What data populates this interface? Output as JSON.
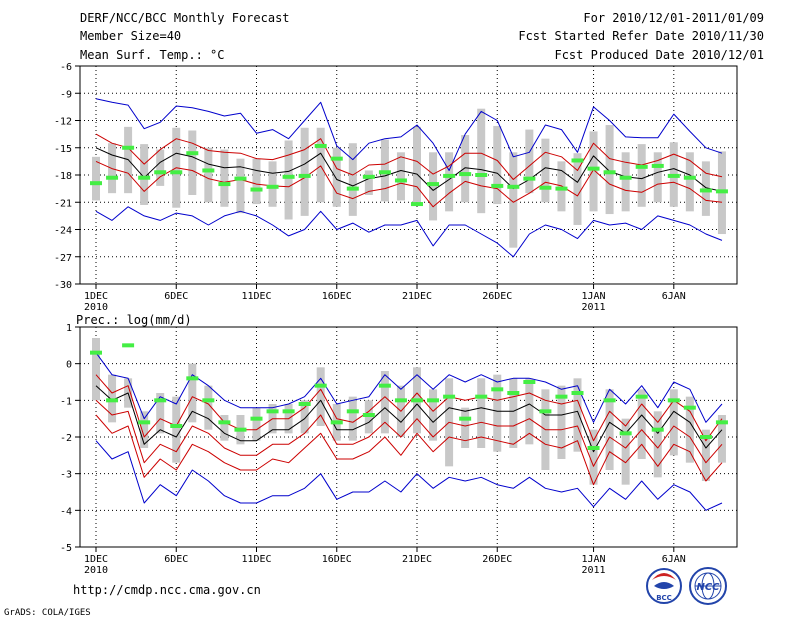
{
  "header": {
    "title": "DERF/NCC/BCC Monthly Forecast",
    "member_size": "Member Size=40",
    "variable": "Mean Surf. Temp.: °C",
    "period": "For 2010/12/01-2011/01/09",
    "started": "Fcst Started Refer Date 2010/11/30",
    "produced": "Fcst Produced Date 2010/12/01"
  },
  "footer": {
    "url": "http://cmdp.ncc.cma.gov.cn",
    "grads": "GrADS: COLA/IGES",
    "logo_bcc": "BCC",
    "logo_ncc": "NCC"
  },
  "colors": {
    "envelope": "#0000cc",
    "spread": "#cc0000",
    "mean": "#000000",
    "box": "#c8c8c8",
    "obs": "#44ee44"
  },
  "chart_data": [
    {
      "type": "line",
      "title": "Mean Surf. Temp.: °C",
      "xlabel": "",
      "ylabel": "",
      "ylim": [
        -30,
        -6
      ],
      "yticks": [
        -6,
        -9,
        -12,
        -15,
        -18,
        -21,
        -24,
        -27,
        -30
      ],
      "x_days": [
        1,
        2,
        3,
        4,
        5,
        6,
        7,
        8,
        9,
        10,
        11,
        12,
        13,
        14,
        15,
        16,
        17,
        18,
        19,
        20,
        21,
        22,
        23,
        24,
        25,
        26,
        27,
        28,
        29,
        30,
        31,
        32,
        33,
        34,
        35,
        36,
        37,
        38,
        39,
        40
      ],
      "x_tick_labels": [
        {
          "day": 1,
          "label": "1DEC",
          "sub": "2010"
        },
        {
          "day": 6,
          "label": "6DEC",
          "sub": ""
        },
        {
          "day": 11,
          "label": "11DEC",
          "sub": ""
        },
        {
          "day": 16,
          "label": "16DEC",
          "sub": ""
        },
        {
          "day": 21,
          "label": "21DEC",
          "sub": ""
        },
        {
          "day": 26,
          "label": "26DEC",
          "sub": ""
        },
        {
          "day": 32,
          "label": "1JAN",
          "sub": "2011"
        },
        {
          "day": 37,
          "label": "6JAN",
          "sub": ""
        }
      ],
      "series": [
        {
          "name": "max",
          "role": "envelope",
          "values": [
            -9.6,
            -10.0,
            -10.3,
            -12.9,
            -12.2,
            -10.4,
            -10.6,
            -11.0,
            -11.5,
            -11.2,
            -13.4,
            -13.0,
            -14.0,
            -12.0,
            -10.0,
            -14.8,
            -16.3,
            -14.5,
            -14.0,
            -13.8,
            -12.5,
            -14.5,
            -17.5,
            -13.5,
            -11.0,
            -12.0,
            -16.0,
            -15.5,
            -12.5,
            -13.0,
            -15.5,
            -10.5,
            -12.0,
            -13.8,
            -13.9,
            -13.9,
            -11.3,
            -13.2,
            -15.0,
            -15.6
          ]
        },
        {
          "name": "upper",
          "role": "spread",
          "values": [
            -13.5,
            -14.5,
            -15.0,
            -16.8,
            -15.2,
            -14.0,
            -14.5,
            -15.3,
            -15.5,
            -15.6,
            -16.2,
            -16.3,
            -15.8,
            -15.2,
            -14.0,
            -17.3,
            -18.0,
            -16.9,
            -16.8,
            -16.0,
            -16.5,
            -17.9,
            -17.0,
            -15.6,
            -15.6,
            -16.4,
            -18.5,
            -17.0,
            -15.5,
            -16.0,
            -17.5,
            -14.5,
            -16.2,
            -16.6,
            -16.9,
            -16.4,
            -15.7,
            -16.4,
            -17.8,
            -18.2
          ]
        },
        {
          "name": "mean",
          "role": "mean",
          "values": [
            -15.0,
            -15.8,
            -16.3,
            -18.3,
            -16.6,
            -15.6,
            -16.0,
            -16.8,
            -17.2,
            -17.1,
            -17.5,
            -17.8,
            -17.6,
            -16.8,
            -15.6,
            -18.5,
            -19.2,
            -18.4,
            -18.1,
            -17.5,
            -17.9,
            -19.7,
            -18.5,
            -17.2,
            -17.4,
            -17.8,
            -19.5,
            -18.5,
            -17.2,
            -17.5,
            -18.8,
            -15.9,
            -17.6,
            -18.2,
            -18.4,
            -17.7,
            -17.3,
            -18.0,
            -19.4,
            -19.8
          ]
        },
        {
          "name": "lower",
          "role": "spread",
          "values": [
            -16.5,
            -17.3,
            -17.8,
            -19.8,
            -18.2,
            -17.2,
            -17.5,
            -18.4,
            -18.8,
            -18.5,
            -19.0,
            -19.2,
            -19.3,
            -18.3,
            -17.0,
            -20.0,
            -20.6,
            -19.8,
            -19.5,
            -18.9,
            -19.3,
            -21.5,
            -20.0,
            -18.7,
            -19.2,
            -19.5,
            -21.0,
            -20.0,
            -18.8,
            -19.2,
            -20.3,
            -17.4,
            -19.0,
            -19.7,
            -19.9,
            -19.0,
            -18.8,
            -19.5,
            -20.8,
            -21.0
          ]
        },
        {
          "name": "min",
          "role": "envelope",
          "values": [
            -22.0,
            -23.0,
            -21.5,
            -22.5,
            -23.0,
            -22.2,
            -22.5,
            -23.5,
            -22.5,
            -22.0,
            -22.5,
            -23.5,
            -24.7,
            -24.0,
            -22.0,
            -24.0,
            -23.3,
            -24.3,
            -23.5,
            -23.5,
            -23.0,
            -25.8,
            -23.5,
            -23.5,
            -24.5,
            -25.5,
            -27.0,
            -24.5,
            -23.5,
            -24.0,
            -25.0,
            -23.0,
            -23.5,
            -23.3,
            -24.0,
            -22.5,
            -23.0,
            -23.5,
            -24.5,
            -25.2
          ]
        }
      ],
      "boxes": {
        "high": [
          -16.0,
          -14.5,
          -12.7,
          -14.6,
          -15.2,
          -12.8,
          -13.1,
          -15.0,
          -15.2,
          -16.2,
          -16.2,
          -16.5,
          -14.2,
          -12.8,
          -12.8,
          -15.0,
          -14.5,
          -17.5,
          -14.1,
          -15.5,
          -12.7,
          -15.5,
          -15.5,
          -13.6,
          -10.7,
          -12.6,
          -15.5,
          -13.0,
          -14.0,
          -16.5,
          -15.6,
          -13.2,
          -12.5,
          -15.5,
          -14.6,
          -15.5,
          -14.4,
          -15.5,
          -16.5,
          -15.4
        ],
        "low": [
          -20.8,
          -20.0,
          -20.0,
          -21.3,
          -19.2,
          -21.6,
          -20.2,
          -21.0,
          -21.5,
          -22.2,
          -21.2,
          -21.5,
          -22.9,
          -22.5,
          -21.0,
          -21.5,
          -22.5,
          -20.2,
          -20.9,
          -20.8,
          -21.0,
          -23.0,
          -22.0,
          -21.0,
          -22.2,
          -21.2,
          -26.0,
          -20.0,
          -21.0,
          -22.0,
          -23.5,
          -22.0,
          -22.3,
          -22.0,
          -21.5,
          -21.0,
          -21.5,
          -22.0,
          -22.5,
          -24.5
        ]
      },
      "observed": [
        -18.9,
        -18.3,
        -15.0,
        -18.3,
        -17.7,
        -17.7,
        -15.6,
        -17.5,
        -19.0,
        -18.4,
        -19.6,
        -19.3,
        -18.2,
        -18.1,
        -14.8,
        -16.2,
        -19.5,
        -18.2,
        -17.7,
        -18.6,
        -21.2,
        -19.0,
        -18.1,
        -17.9,
        -18.0,
        -19.2,
        -19.3,
        -18.4,
        -19.4,
        -19.5,
        -16.4,
        -17.3,
        -17.7,
        -18.3,
        -17.1,
        -17.0,
        -18.1,
        -18.3,
        -19.7,
        -19.8
      ]
    },
    {
      "type": "line",
      "title": "Prec.: log(mm/d)",
      "xlabel": "",
      "ylabel": "",
      "ylim": [
        -5,
        1
      ],
      "yticks": [
        1,
        0,
        -1,
        -2,
        -3,
        -4,
        -5
      ],
      "x_days": [
        1,
        2,
        3,
        4,
        5,
        6,
        7,
        8,
        9,
        10,
        11,
        12,
        13,
        14,
        15,
        16,
        17,
        18,
        19,
        20,
        21,
        22,
        23,
        24,
        25,
        26,
        27,
        28,
        29,
        30,
        31,
        32,
        33,
        34,
        35,
        36,
        37,
        38,
        39,
        40
      ],
      "x_tick_labels": [
        {
          "day": 1,
          "label": "1DEC",
          "sub": "2010"
        },
        {
          "day": 6,
          "label": "6DEC",
          "sub": ""
        },
        {
          "day": 11,
          "label": "11DEC",
          "sub": ""
        },
        {
          "day": 16,
          "label": "16DEC",
          "sub": ""
        },
        {
          "day": 21,
          "label": "21DEC",
          "sub": ""
        },
        {
          "day": 26,
          "label": "26DEC",
          "sub": ""
        },
        {
          "day": 32,
          "label": "1JAN",
          "sub": "2011"
        },
        {
          "day": 37,
          "label": "6JAN",
          "sub": ""
        }
      ],
      "series": [
        {
          "name": "max",
          "role": "envelope",
          "values": [
            0.3,
            -0.3,
            -0.4,
            -1.5,
            -0.9,
            -1.1,
            -0.3,
            -0.6,
            -1.0,
            -1.2,
            -1.2,
            -1.2,
            -1.1,
            -0.9,
            -0.4,
            -1.1,
            -1.0,
            -0.9,
            -0.3,
            -0.7,
            -0.3,
            -0.7,
            -0.3,
            -0.5,
            -0.3,
            -0.5,
            -0.4,
            -0.4,
            -0.5,
            -0.7,
            -0.6,
            -1.6,
            -0.7,
            -1.1,
            -0.6,
            -1.2,
            -0.5,
            -0.7,
            -1.6,
            -1.1
          ]
        },
        {
          "name": "upper",
          "role": "spread",
          "values": [
            -0.3,
            -0.8,
            -0.6,
            -2.0,
            -1.5,
            -1.7,
            -0.9,
            -1.1,
            -1.6,
            -1.8,
            -1.8,
            -1.5,
            -1.5,
            -1.2,
            -0.7,
            -1.5,
            -1.6,
            -1.3,
            -0.9,
            -1.3,
            -0.8,
            -1.3,
            -0.9,
            -1.0,
            -0.9,
            -1.0,
            -0.9,
            -0.8,
            -1.0,
            -1.1,
            -1.0,
            -2.1,
            -1.3,
            -1.7,
            -1.1,
            -1.6,
            -1.0,
            -1.3,
            -2.1,
            -1.5
          ]
        },
        {
          "name": "mean",
          "role": "mean",
          "values": [
            -0.6,
            -1.0,
            -0.8,
            -2.2,
            -1.8,
            -2.0,
            -1.3,
            -1.5,
            -1.9,
            -2.1,
            -2.1,
            -1.8,
            -1.8,
            -1.5,
            -1.0,
            -1.8,
            -1.8,
            -1.6,
            -1.2,
            -1.6,
            -1.1,
            -1.6,
            -1.2,
            -1.3,
            -1.2,
            -1.3,
            -1.3,
            -1.1,
            -1.4,
            -1.4,
            -1.3,
            -2.4,
            -1.6,
            -1.9,
            -1.4,
            -1.9,
            -1.3,
            -1.6,
            -2.3,
            -1.8
          ]
        },
        {
          "name": "lower",
          "role": "spread",
          "values": [
            -1.0,
            -1.4,
            -1.3,
            -2.7,
            -2.2,
            -2.4,
            -1.7,
            -1.9,
            -2.3,
            -2.5,
            -2.5,
            -2.2,
            -2.2,
            -1.9,
            -1.4,
            -2.2,
            -2.2,
            -2.0,
            -1.6,
            -2.0,
            -1.5,
            -2.0,
            -1.6,
            -1.7,
            -1.6,
            -1.7,
            -1.7,
            -1.5,
            -1.8,
            -1.8,
            -1.7,
            -2.8,
            -2.0,
            -2.3,
            -1.8,
            -2.3,
            -1.7,
            -2.0,
            -2.7,
            -2.2
          ]
        },
        {
          "name": "lower2",
          "role": "spread",
          "values": [
            -1.4,
            -1.9,
            -1.7,
            -3.1,
            -2.6,
            -2.9,
            -2.2,
            -2.4,
            -2.7,
            -2.9,
            -2.9,
            -2.6,
            -2.7,
            -2.3,
            -1.9,
            -2.6,
            -2.6,
            -2.4,
            -2.0,
            -2.5,
            -1.9,
            -2.4,
            -2.0,
            -2.1,
            -2.0,
            -2.1,
            -2.2,
            -1.9,
            -2.2,
            -2.3,
            -2.1,
            -3.3,
            -2.4,
            -2.7,
            -2.2,
            -2.8,
            -2.2,
            -2.4,
            -3.2,
            -2.7
          ]
        },
        {
          "name": "min",
          "role": "envelope",
          "values": [
            -2.1,
            -2.6,
            -2.4,
            -3.8,
            -3.3,
            -3.6,
            -2.9,
            -3.2,
            -3.6,
            -3.8,
            -3.8,
            -3.6,
            -3.6,
            -3.4,
            -3.0,
            -3.7,
            -3.5,
            -3.5,
            -3.2,
            -3.5,
            -3.0,
            -3.4,
            -3.1,
            -3.2,
            -3.1,
            -3.3,
            -3.4,
            -3.1,
            -3.4,
            -3.5,
            -3.4,
            -3.9,
            -3.4,
            -3.7,
            -3.2,
            -3.7,
            -3.3,
            -3.5,
            -4.0,
            -3.8
          ]
        },
        {
          "name": "min2",
          "role": "envelope-blank",
          "values": []
        }
      ],
      "boxes": {
        "high": [
          0.7,
          -0.3,
          -0.4,
          -1.3,
          -0.8,
          -0.9,
          0.0,
          -0.6,
          -1.4,
          -1.4,
          -1.2,
          -1.1,
          -1.1,
          -1.0,
          -0.1,
          -1.1,
          -0.9,
          -1.0,
          -0.2,
          -0.6,
          -0.1,
          -0.7,
          -0.4,
          -1.2,
          -0.4,
          -0.3,
          -0.4,
          -0.4,
          -0.7,
          -0.6,
          -0.4,
          -1.8,
          -0.7,
          -1.5,
          -0.7,
          -1.3,
          -0.7,
          -0.9,
          -1.8,
          -1.4
        ],
        "low": [
          -1.0,
          -1.6,
          -1.2,
          -2.3,
          -1.9,
          -2.7,
          -1.6,
          -1.8,
          -2.1,
          -2.2,
          -2.1,
          -1.9,
          -1.9,
          -1.9,
          -1.7,
          -2.1,
          -2.1,
          -1.9,
          -1.9,
          -2.0,
          -1.9,
          -2.1,
          -2.8,
          -2.3,
          -2.3,
          -2.4,
          -2.3,
          -2.2,
          -2.9,
          -2.6,
          -2.4,
          -3.3,
          -2.9,
          -3.3,
          -2.6,
          -3.1,
          -2.5,
          -2.7,
          -3.2,
          -2.7
        ]
      },
      "observed": [
        0.3,
        -1.0,
        0.5,
        -1.6,
        -1.0,
        -1.7,
        -0.4,
        -1.0,
        -1.6,
        -1.8,
        -1.5,
        -1.3,
        -1.3,
        -1.1,
        -0.6,
        -1.6,
        -1.3,
        -1.4,
        -0.6,
        -1.0,
        -1.0,
        -1.0,
        -0.9,
        -1.5,
        -0.9,
        -0.7,
        -0.8,
        -0.5,
        -1.3,
        -0.9,
        -0.8,
        -2.3,
        -1.0,
        -1.9,
        -0.9,
        -1.8,
        -1.0,
        -1.2,
        -2.0,
        -1.6
      ]
    }
  ]
}
